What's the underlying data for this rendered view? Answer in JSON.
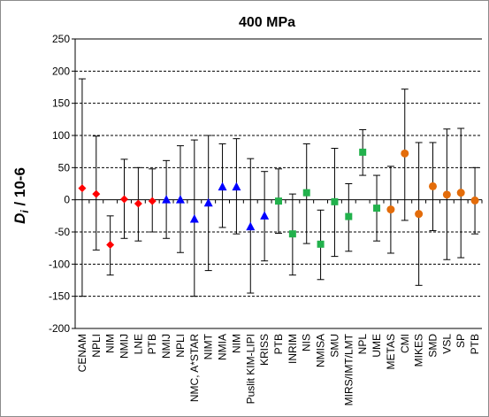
{
  "chart_data": {
    "type": "scatter",
    "title": "400 MPa",
    "ylabel": "D_i / 10-6",
    "ylabel_parts": {
      "main": "D",
      "sub": "i",
      "rest": " / 10-6"
    },
    "xlabel": "",
    "ylim": [
      -200,
      250
    ],
    "ytick_step": 50,
    "grid": "horizontal dashed",
    "legend": "none",
    "categories": [
      "CENAM",
      "NPLI",
      "NIM",
      "NMIJ",
      "LNE",
      "PTB",
      "NMIJ",
      "NPLI",
      "NMC, A*STAR",
      "NIMT",
      "NMIA",
      "NIM",
      "Puslit KIM-LIPI",
      "KRISS",
      "PTB",
      "INRIM",
      "NIS",
      "NMISA",
      "SMU",
      "MIRS/IMT/LMT",
      "NPL",
      "UME",
      "METAS",
      "CMI",
      "MIKES",
      "SMD",
      "VSL",
      "SP",
      "PTB"
    ],
    "series": [
      {
        "marker": "diamond",
        "color": "#ff0000",
        "points": [
          {
            "index": 0,
            "y": 18,
            "low": -150,
            "high": 188
          },
          {
            "index": 1,
            "y": 9,
            "low": -78,
            "high": 99
          },
          {
            "index": 2,
            "y": -70,
            "low": -117,
            "high": -25
          },
          {
            "index": 3,
            "y": 1,
            "low": -60,
            "high": 63
          },
          {
            "index": 4,
            "y": -6,
            "low": -64,
            "high": 50
          },
          {
            "index": 5,
            "y": -2,
            "low": -50,
            "high": 48
          }
        ]
      },
      {
        "marker": "triangle",
        "color": "#0000ff",
        "points": [
          {
            "index": 6,
            "y": 0,
            "low": -60,
            "high": 61
          },
          {
            "index": 7,
            "y": 0,
            "low": -82,
            "high": 84
          },
          {
            "index": 8,
            "y": -30,
            "low": -150,
            "high": 93
          },
          {
            "index": 9,
            "y": -5,
            "low": -110,
            "high": 100
          },
          {
            "index": 10,
            "y": 20,
            "low": -43,
            "high": 87
          },
          {
            "index": 11,
            "y": 20,
            "low": -53,
            "high": 95
          },
          {
            "index": 12,
            "y": -42,
            "low": -145,
            "high": 64
          },
          {
            "index": 13,
            "y": -25,
            "low": -95,
            "high": 44
          }
        ]
      },
      {
        "marker": "square",
        "color": "#22b14c",
        "points": [
          {
            "index": 14,
            "y": -2,
            "low": -52,
            "high": 48
          },
          {
            "index": 15,
            "y": -53,
            "low": -117,
            "high": 9
          },
          {
            "index": 16,
            "y": 11,
            "low": -68,
            "high": 87
          },
          {
            "index": 17,
            "y": -69,
            "low": -124,
            "high": -16
          },
          {
            "index": 18,
            "y": -3,
            "low": -88,
            "high": 80
          },
          {
            "index": 19,
            "y": -26,
            "low": -80,
            "high": 25
          },
          {
            "index": 20,
            "y": 74,
            "low": 38,
            "high": 109
          },
          {
            "index": 21,
            "y": -13,
            "low": -64,
            "high": 38
          }
        ]
      },
      {
        "marker": "circle",
        "color": "#e36c0a",
        "points": [
          {
            "index": 22,
            "y": -15,
            "low": -83,
            "high": 52
          },
          {
            "index": 23,
            "y": 72,
            "low": -32,
            "high": 172
          },
          {
            "index": 24,
            "y": -22,
            "low": -133,
            "high": 89
          },
          {
            "index": 25,
            "y": 21,
            "low": -48,
            "high": 89
          },
          {
            "index": 26,
            "y": 8,
            "low": -93,
            "high": 110
          },
          {
            "index": 27,
            "y": 11,
            "low": -90,
            "high": 111
          },
          {
            "index": 28,
            "y": -1,
            "low": -53,
            "high": 50
          }
        ]
      }
    ]
  }
}
